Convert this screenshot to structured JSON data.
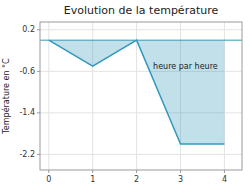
{
  "chart_data": {
    "type": "area",
    "title": "Evolution de la température",
    "xlabel": "heure par heure",
    "ylabel": "Température en °C",
    "x": [
      0,
      1,
      2,
      3,
      4
    ],
    "values": [
      0.0,
      -0.5,
      0.0,
      -2.0,
      -2.0
    ],
    "xlim": [
      -0.2,
      4.4
    ],
    "ylim": [
      -2.5,
      0.35
    ],
    "xticks": [
      0,
      1,
      2,
      3,
      4
    ],
    "yticks": [
      0.2,
      -0.6,
      -1.4,
      -2.2
    ],
    "grid": true,
    "color": "#3399bb"
  }
}
